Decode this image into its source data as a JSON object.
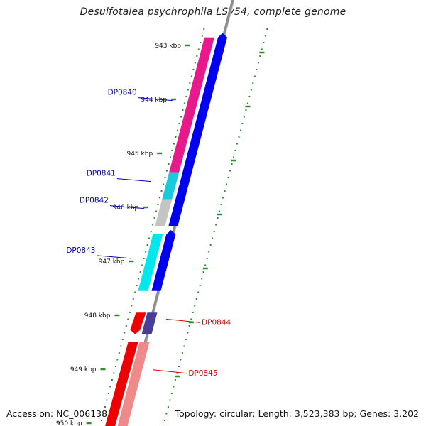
{
  "title": "Desulfotalea psychrophila LSv54, complete genome",
  "footer": {
    "accession": "Accession: NC_006138",
    "topology": "Topology: circular; Length: 3,523,383 bp; Genes: 3,202"
  },
  "colors": {
    "backbone": "#8c8c8c",
    "tick": "#2e8b2e",
    "minus_label": "#0000b0",
    "plus_label": "#dd0000",
    "forward_gene": "#0000ee"
  },
  "ruler": {
    "unit": "kbp",
    "labels": [
      "943 kbp",
      "944 kbp",
      "945 kbp",
      "946 kbp",
      "947 kbp",
      "948 kbp",
      "949 kbp",
      "950 kbp"
    ]
  },
  "features": [
    {
      "name": "DP0840",
      "strand": "minus",
      "start_kbp": 942.85,
      "end_kbp": 945.35,
      "color": "#e8198b"
    },
    {
      "name": "DP0841",
      "strand": "minus",
      "start_kbp": 945.35,
      "end_kbp": 945.85,
      "color": "#19c9dd"
    },
    {
      "name": "DP0842",
      "strand": "minus",
      "start_kbp": 945.85,
      "end_kbp": 946.35,
      "color": "#c4c4c4"
    },
    {
      "name": "DP0843",
      "strand": "minus",
      "start_kbp": 946.5,
      "end_kbp": 947.55,
      "color": "#00e8ee"
    },
    {
      "name": "DP0844",
      "strand": "plus",
      "start_kbp": 947.95,
      "end_kbp": 948.35,
      "color": "#4a3d9a"
    },
    {
      "name": "DP0845",
      "strand": "plus",
      "start_kbp": 948.5,
      "end_kbp": 950.2,
      "color": "#f08a8a"
    }
  ]
}
